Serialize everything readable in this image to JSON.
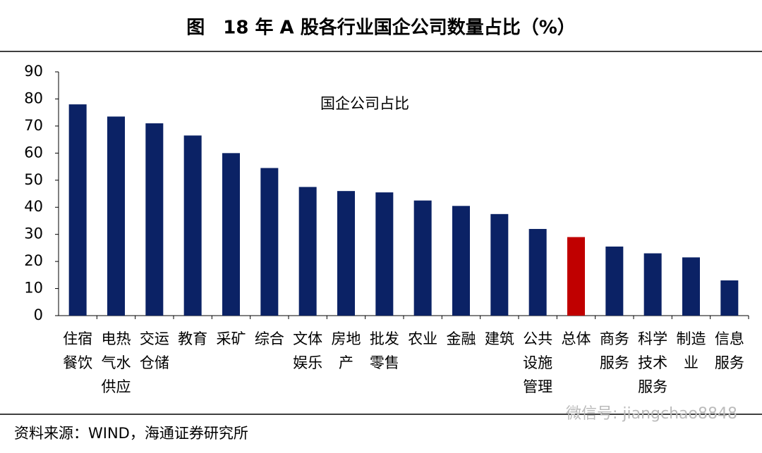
{
  "chart_data": {
    "type": "bar",
    "title": "图　18 年 A 股各行业国企公司数量占比（%）",
    "categories": [
      "住宿餐饮",
      "电热气水供应",
      "交运仓储",
      "教育",
      "采矿",
      "综合",
      "文体娱乐",
      "房地产",
      "批发零售",
      "农业",
      "金融",
      "建筑",
      "公共设施管理",
      "总体",
      "商务服务",
      "科学技术服务",
      "制造业",
      "信息服务"
    ],
    "series": [
      {
        "name": "国企公司占比",
        "colors": [
          "#0b2265",
          "#0b2265",
          "#0b2265",
          "#0b2265",
          "#0b2265",
          "#0b2265",
          "#0b2265",
          "#0b2265",
          "#0b2265",
          "#0b2265",
          "#0b2265",
          "#0b2265",
          "#0b2265",
          "#c00000",
          "#0b2265",
          "#0b2265",
          "#0b2265",
          "#0b2265"
        ],
        "values": [
          78,
          73.5,
          71,
          66.5,
          60,
          54.5,
          47.5,
          46,
          45.5,
          42.5,
          40.5,
          37.5,
          32,
          29,
          25.5,
          23,
          21.5,
          13
        ]
      }
    ],
    "ylim": [
      0,
      90
    ],
    "yticks": [
      0,
      10,
      20,
      30,
      40,
      50,
      60,
      70,
      80,
      90
    ],
    "source": "资料来源：WIND，海通证券研究所",
    "watermark": "微信号: jiangchao8848"
  }
}
